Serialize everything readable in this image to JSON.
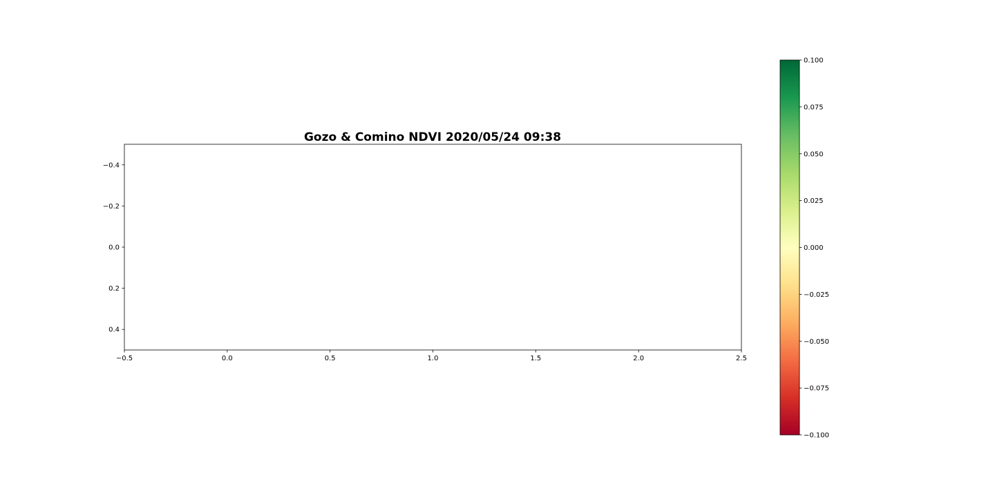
{
  "chart_data": {
    "type": "heatmap",
    "title": "Gozo & Comino NDVI 2020/05/24 09:38",
    "xlabel": "",
    "ylabel": "",
    "xlim": [
      -0.5,
      2.5
    ],
    "ylim": [
      0.5,
      -0.5
    ],
    "y_inverted": true,
    "x_ticks": [
      -0.5,
      0.0,
      0.5,
      1.0,
      1.5,
      2.0,
      2.5
    ],
    "x_tick_labels": [
      "−0.5",
      "0.0",
      "0.5",
      "1.0",
      "1.5",
      "2.0",
      "2.5"
    ],
    "y_ticks": [
      -0.4,
      -0.2,
      0.0,
      0.2,
      0.4
    ],
    "y_tick_labels": [
      "−0.4",
      "−0.2",
      "0.0",
      "0.2",
      "0.4"
    ],
    "values": [],
    "grid": false,
    "colorbar": {
      "colormap": "RdYlGn",
      "range": [
        -0.1,
        0.1
      ],
      "ticks": [
        0.1,
        0.075,
        0.05,
        0.025,
        0.0,
        -0.025,
        -0.05,
        -0.075,
        -0.1
      ],
      "tick_labels": [
        "0.100",
        "0.075",
        "0.050",
        "0.025",
        "0.000",
        "−0.025",
        "−0.050",
        "−0.075",
        "−0.100"
      ],
      "colors": [
        "#a50026",
        "#d73027",
        "#f46d43",
        "#fdae61",
        "#fee08b",
        "#ffffbf",
        "#d9ef8b",
        "#a6d96a",
        "#66bd63",
        "#1a9850",
        "#006837"
      ]
    }
  }
}
